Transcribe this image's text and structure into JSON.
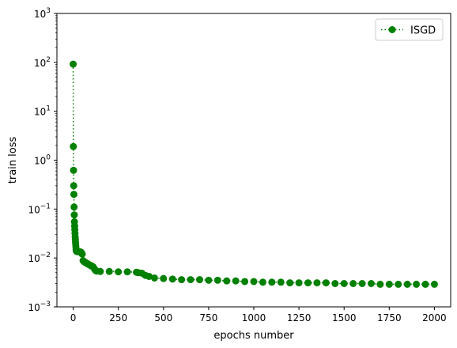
{
  "colors": {
    "series": "#008000",
    "axes": "#000000",
    "background": "#ffffff"
  },
  "chart_data": {
    "type": "line",
    "title": "",
    "xlabel": "epochs number",
    "ylabel": "train loss",
    "xlim": [
      -90,
      2090
    ],
    "ylim": [
      0.001,
      1000
    ],
    "yscale": "log",
    "grid": false,
    "legend_placement": "top-right",
    "x_ticks": [
      0,
      250,
      500,
      750,
      1000,
      1250,
      1500,
      1750,
      2000
    ],
    "x_tick_labels": [
      "0",
      "250",
      "500",
      "750",
      "1000",
      "1250",
      "1500",
      "1750",
      "2000"
    ],
    "y_ticks": [
      0.001,
      0.01,
      0.1,
      1,
      10,
      100,
      1000
    ],
    "y_tick_labels": [
      {
        "base": "10",
        "exp": "−3"
      },
      {
        "base": "10",
        "exp": "−2"
      },
      {
        "base": "10",
        "exp": "−1"
      },
      {
        "base": "10",
        "exp": "0"
      },
      {
        "base": "10",
        "exp": "1"
      },
      {
        "base": "10",
        "exp": "2"
      },
      {
        "base": "10",
        "exp": "3"
      }
    ],
    "series": [
      {
        "name": "ISGD",
        "color": "#008000",
        "marker": "circle",
        "linestyle": "dotted",
        "points": [
          [
            0,
            92
          ],
          [
            1,
            1.9
          ],
          [
            2,
            0.62
          ],
          [
            3,
            0.3
          ],
          [
            4,
            0.2
          ],
          [
            5,
            0.11
          ],
          [
            6,
            0.076
          ],
          [
            7,
            0.055
          ],
          [
            8,
            0.045
          ],
          [
            9,
            0.038
          ],
          [
            10,
            0.032
          ],
          [
            11,
            0.027
          ],
          [
            12,
            0.024
          ],
          [
            13,
            0.021
          ],
          [
            14,
            0.019
          ],
          [
            15,
            0.017
          ],
          [
            16,
            0.015
          ],
          [
            17,
            0.014
          ],
          [
            20,
            0.0135
          ],
          [
            25,
            0.0135
          ],
          [
            30,
            0.0134
          ],
          [
            35,
            0.0133
          ],
          [
            40,
            0.0133
          ],
          [
            45,
            0.013
          ],
          [
            50,
            0.012
          ],
          [
            55,
            0.0088
          ],
          [
            60,
            0.0084
          ],
          [
            65,
            0.0082
          ],
          [
            70,
            0.008
          ],
          [
            75,
            0.0078
          ],
          [
            80,
            0.0076
          ],
          [
            85,
            0.0074
          ],
          [
            90,
            0.0072
          ],
          [
            95,
            0.0071
          ],
          [
            100,
            0.0069
          ],
          [
            105,
            0.0068
          ],
          [
            110,
            0.0066
          ],
          [
            115,
            0.0062
          ],
          [
            120,
            0.0058
          ],
          [
            125,
            0.0055
          ],
          [
            130,
            0.0054
          ],
          [
            150,
            0.0053
          ],
          [
            200,
            0.0053
          ],
          [
            250,
            0.0052
          ],
          [
            300,
            0.0052
          ],
          [
            350,
            0.0051
          ],
          [
            360,
            0.005
          ],
          [
            380,
            0.0049
          ],
          [
            400,
            0.0044
          ],
          [
            420,
            0.0042
          ],
          [
            450,
            0.0039
          ],
          [
            500,
            0.0038
          ],
          [
            550,
            0.0037
          ],
          [
            600,
            0.0036
          ],
          [
            650,
            0.0036
          ],
          [
            700,
            0.0036
          ],
          [
            750,
            0.0035
          ],
          [
            800,
            0.0035
          ],
          [
            850,
            0.0034
          ],
          [
            900,
            0.0034
          ],
          [
            950,
            0.0033
          ],
          [
            1000,
            0.0033
          ],
          [
            1050,
            0.0032
          ],
          [
            1100,
            0.0032
          ],
          [
            1150,
            0.0032
          ],
          [
            1200,
            0.0031
          ],
          [
            1250,
            0.0031
          ],
          [
            1300,
            0.0031
          ],
          [
            1350,
            0.0031
          ],
          [
            1400,
            0.0031
          ],
          [
            1450,
            0.003
          ],
          [
            1500,
            0.003
          ],
          [
            1550,
            0.003
          ],
          [
            1600,
            0.003
          ],
          [
            1650,
            0.003
          ],
          [
            1700,
            0.0029
          ],
          [
            1750,
            0.0029
          ],
          [
            1800,
            0.0029
          ],
          [
            1850,
            0.0029
          ],
          [
            1900,
            0.0029
          ],
          [
            1950,
            0.0029
          ],
          [
            2000,
            0.0029
          ]
        ]
      }
    ]
  }
}
